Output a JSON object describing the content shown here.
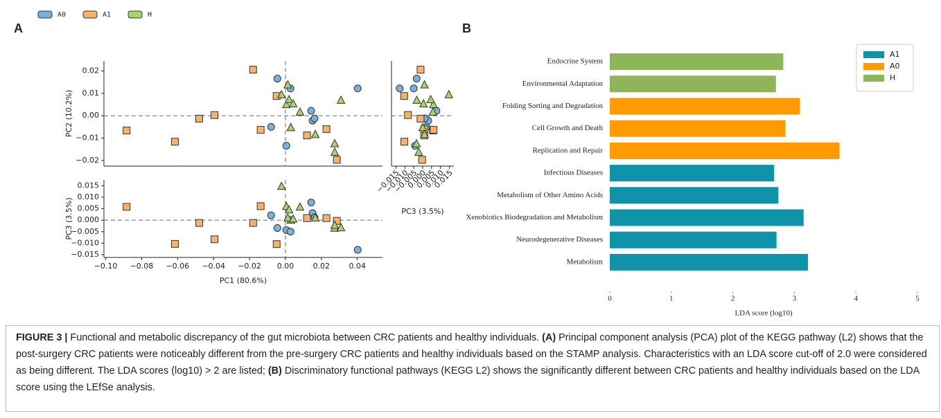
{
  "panel_labels": [
    "A",
    "B"
  ],
  "chart_data": [
    {
      "type": "scatter",
      "ylabel": "PC2 (10.2%)",
      "legend": "top",
      "xlim": [
        -0.101,
        0.054
      ],
      "ylim": [
        -0.0225,
        0.0245
      ],
      "yticks": [
        {
          "value": -0.02,
          "label": "−0.02"
        },
        {
          "value": -0.01,
          "label": "−0.01"
        },
        {
          "value": 0,
          "label": "0.00"
        },
        {
          "value": 0.01,
          "label": "0.01"
        },
        {
          "value": 0.02,
          "label": "0.02"
        }
      ],
      "hline": 0,
      "vline": 0,
      "series": [
        {
          "name": "A0",
          "color": "#7ab0dc",
          "marker": "circle",
          "x": [
            -0.008,
            -0.0045,
            0.0005,
            0.0028,
            0.0143,
            0.0151,
            0.0162,
            0.0402
          ],
          "values": [
            -0.005,
            0.0166,
            -0.0134,
            0.0122,
            0.0022,
            -0.0022,
            -0.0012,
            0.0122
          ]
        },
        {
          "name": "A1",
          "color": "#f6b26b",
          "marker": "square",
          "x": [
            -0.0884,
            -0.0615,
            -0.048,
            -0.0395,
            -0.018,
            -0.0138,
            -0.0049,
            0.012,
            0.0228,
            0.0286
          ],
          "values": [
            -0.0066,
            -0.0116,
            -0.0013,
            0.0003,
            0.0206,
            -0.0063,
            0.0088,
            -0.0088,
            -0.006,
            -0.0197
          ]
        },
        {
          "name": "H",
          "color": "#a6d46a",
          "marker": "triangle",
          "x": [
            -0.0022,
            0.0005,
            0.002,
            0.003,
            0.0081,
            0.0166,
            0.0274,
            0.0274,
            0.0309,
            0.0013,
            0.0043
          ],
          "values": [
            0.0094,
            0.005,
            0.0072,
            -0.0053,
            0.0016,
            -0.0084,
            -0.0125,
            -0.0163,
            0.0069,
            0.0138,
            0.0053
          ]
        }
      ]
    },
    {
      "type": "scatter",
      "ylabel": "PC3 (3.5%)",
      "xlabel": "PC1 (80.6%)",
      "xlim": [
        -0.101,
        0.054
      ],
      "ylim": [
        -0.0162,
        0.0175
      ],
      "xticks": [
        {
          "value": -0.1,
          "label": "−0.10"
        },
        {
          "value": -0.08,
          "label": "−0.08"
        },
        {
          "value": -0.06,
          "label": "−0.06"
        },
        {
          "value": -0.04,
          "label": "−0.04"
        },
        {
          "value": -0.02,
          "label": "−0.02"
        },
        {
          "value": 0,
          "label": "0.00"
        },
        {
          "value": 0.02,
          "label": "0.02"
        },
        {
          "value": 0.04,
          "label": "0.04"
        }
      ],
      "yticks": [
        {
          "value": -0.015,
          "label": "−0.015"
        },
        {
          "value": -0.01,
          "label": "−0.010"
        },
        {
          "value": -0.005,
          "label": "−0.005"
        },
        {
          "value": 0,
          "label": "0.000"
        },
        {
          "value": 0.005,
          "label": "0.005"
        },
        {
          "value": 0.01,
          "label": "0.010"
        },
        {
          "value": 0.015,
          "label": "0.015"
        }
      ],
      "hline": 0,
      "vline": 0,
      "series": [
        {
          "color": "#7ab0dc",
          "marker": "circle",
          "x": [
            -0.008,
            -0.0045,
            0.0005,
            0.0028,
            0.0143,
            0.0151,
            0.0162,
            0.0402
          ],
          "values": [
            0.0021,
            -0.0034,
            -0.0043,
            -0.005,
            0.0077,
            0.0031,
            0.0012,
            -0.0129
          ]
        },
        {
          "color": "#f6b26b",
          "marker": "square",
          "x": [
            -0.0884,
            -0.0615,
            -0.048,
            -0.0395,
            -0.018,
            -0.0138,
            -0.0049,
            0.012,
            0.0228,
            0.0286
          ],
          "values": [
            0.0058,
            -0.0103,
            -0.0012,
            -0.0083,
            -0.0012,
            0.0061,
            -0.0104,
            0.0009,
            0.0009,
            -0.0003
          ]
        },
        {
          "color": "#a6d46a",
          "marker": "triangle",
          "x": [
            -0.0022,
            0.0005,
            0.002,
            0.003,
            0.0081,
            0.0166,
            0.0274,
            0.0274,
            0.0309,
            0.0013,
            0.0043
          ],
          "values": [
            0.0147,
            0.006,
            0.0045,
            0,
            0.0057,
            0.001,
            -0.0035,
            -0.0022,
            -0.0033,
            0.001,
            0.0005
          ]
        }
      ]
    },
    {
      "type": "scatter",
      "xlabel": "PC3 (3.5%)",
      "xlim": [
        -0.0175,
        0.0175
      ],
      "ylim": [
        -0.0225,
        0.0245
      ],
      "xticks": [
        {
          "value": -0.015,
          "label": "−0.015"
        },
        {
          "value": -0.01,
          "label": "−0.010"
        },
        {
          "value": -0.005,
          "label": "−0.005"
        },
        {
          "value": 0,
          "label": "0.000"
        },
        {
          "value": 0.005,
          "label": "0.005"
        },
        {
          "value": 0.01,
          "label": "0.010"
        },
        {
          "value": 0.015,
          "label": "0.015"
        }
      ],
      "rotate_xticks": true,
      "hline": 0,
      "series": [
        {
          "color": "#7ab0dc",
          "marker": "circle",
          "x": [
            0.0021,
            -0.0034,
            -0.0043,
            -0.005,
            0.0077,
            0.0031,
            0.0012,
            -0.0129
          ],
          "values": [
            -0.005,
            0.0166,
            -0.0134,
            0.0122,
            0.0022,
            -0.0022,
            -0.0012,
            0.0122
          ]
        },
        {
          "color": "#f6b26b",
          "marker": "square",
          "x": [
            0.0058,
            -0.0103,
            -0.0012,
            -0.0083,
            -0.0012,
            0.0061,
            -0.0104,
            0.0009,
            0.0009,
            -0.0003
          ],
          "values": [
            -0.0066,
            -0.0116,
            -0.0013,
            0.0003,
            0.0206,
            -0.0063,
            0.0088,
            -0.0088,
            -0.006,
            -0.0197
          ]
        },
        {
          "color": "#a6d46a",
          "marker": "triangle",
          "x": [
            0.0147,
            0.006,
            0.0045,
            0,
            0.0057,
            0.001,
            -0.0035,
            -0.0022,
            -0.0033,
            0.001,
            0.0005
          ],
          "values": [
            0.0094,
            0.005,
            0.0072,
            -0.0053,
            0.0016,
            -0.0084,
            -0.0125,
            -0.0163,
            0.0069,
            0.0138,
            0.0053
          ]
        }
      ]
    },
    {
      "type": "barh",
      "xlabel": "LDA score (log10)",
      "legend": "upper right",
      "categories": [
        "Endocrine System",
        "Environmental Adaptation",
        "Folding Sorting and Degradation",
        "Cell Growth and Death",
        "Replication and Repair",
        "Infectious Diseases",
        "Metabolism of Other Amino Acids",
        "Xenobiotics Biodegradation and Metabolism",
        "Neurodegenerative Diseases",
        "Metabolism"
      ],
      "xlim": [
        0,
        5
      ],
      "xticks": [
        0,
        1,
        2,
        3,
        4,
        5
      ],
      "series": [
        {
          "name": "A1",
          "color": "#0e93a8",
          "values": [
            null,
            null,
            null,
            null,
            null,
            2.67,
            2.74,
            3.15,
            2.71,
            3.22
          ]
        },
        {
          "name": "A0",
          "color": "#ff9a00",
          "values": [
            null,
            null,
            3.09,
            2.85,
            3.73,
            null,
            null,
            null,
            null,
            null
          ]
        },
        {
          "name": "H",
          "color": "#8fb55a",
          "values": [
            2.82,
            2.7,
            null,
            null,
            null,
            null,
            null,
            null,
            null,
            null
          ]
        }
      ]
    }
  ],
  "caption": [
    {
      "text": "FIGURE 3 |",
      "bold": true
    },
    {
      "text": " Functional and metabolic discrepancy of the gut microbiota between CRC patients and healthy individuals. "
    },
    {
      "text": "(A)",
      "bold": true
    },
    {
      "text": " Principal component analysis (PCA) plot of the KEGG pathway (L2) shows that the post-surgery CRC patients were noticeably different from the pre-surgery CRC patients and healthy individuals based on the STAMP analysis. Characteristics with an LDA score cut-off of 2.0 were considered as being different. The LDA scores (log10) > 2 are listed; "
    },
    {
      "text": "(B)",
      "bold": true
    },
    {
      "text": " Discriminatory functional pathways (KEGG L2) shows the significantly different between CRC patients and healthy individuals based on the LDA score using the LEfSe analysis."
    }
  ]
}
